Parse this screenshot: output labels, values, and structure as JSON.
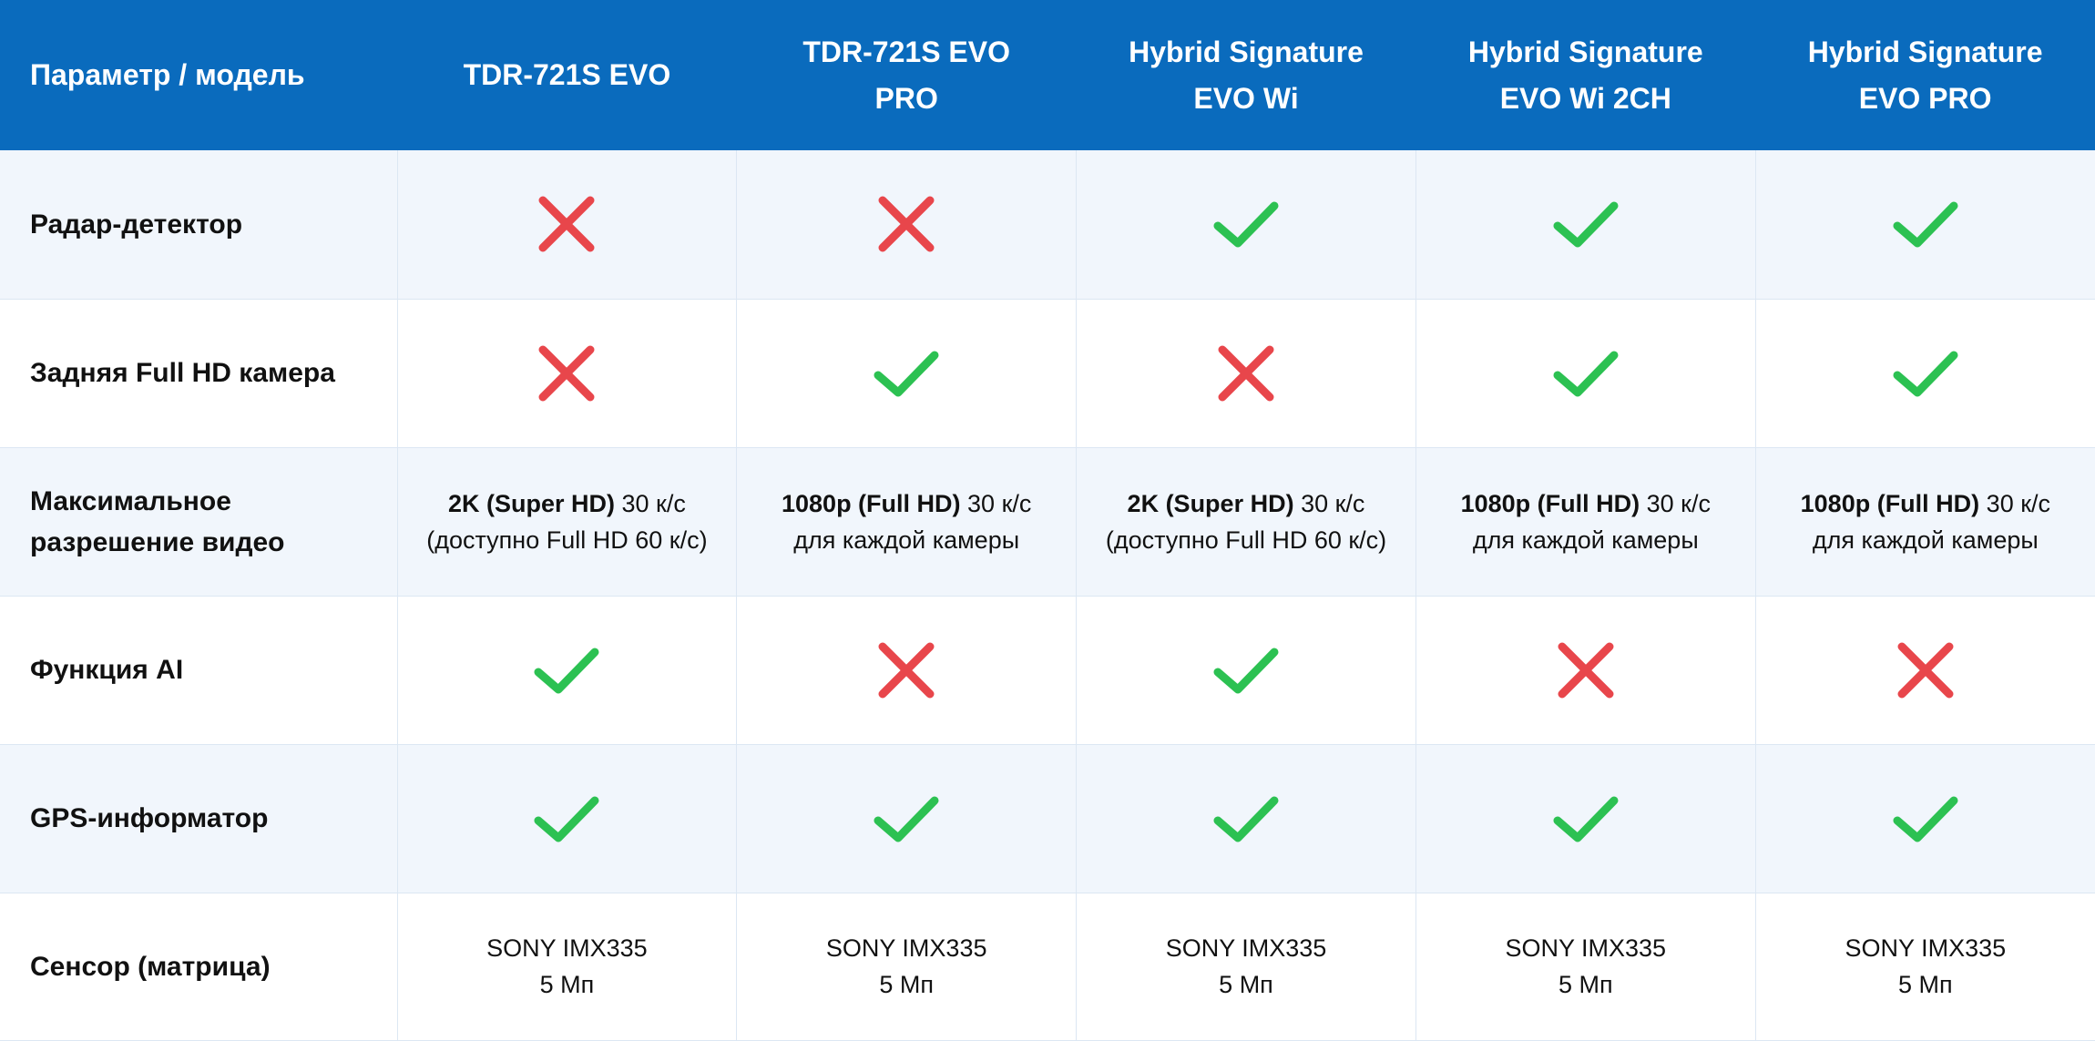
{
  "header": {
    "param_label": "Параметр / модель",
    "models": [
      {
        "line1": "TDR-721S EVO",
        "line2": ""
      },
      {
        "line1": "TDR-721S EVO",
        "line2": "PRO"
      },
      {
        "line1": "Hybrid Signature",
        "line2": "EVO Wi"
      },
      {
        "line1": "Hybrid Signature",
        "line2": "EVO Wi 2CH"
      },
      {
        "line1": "Hybrid Signature",
        "line2": "EVO PRO"
      }
    ]
  },
  "rows": {
    "radar": {
      "label": "Радар-детектор",
      "values": [
        false,
        false,
        true,
        true,
        true
      ]
    },
    "rear_camera": {
      "label": "Задняя Full HD камера",
      "values": [
        false,
        true,
        false,
        true,
        true
      ]
    },
    "resolution": {
      "label_line1": "Максимальное",
      "label_line2": "разрешение видео",
      "cells": [
        {
          "bold": "2K (Super HD)",
          "rest": " 30 к/с",
          "line2": "(доступно Full HD 60 к/с)"
        },
        {
          "bold": "1080p (Full HD)",
          "rest": " 30 к/с",
          "line2": "для каждой камеры"
        },
        {
          "bold": "2K (Super HD)",
          "rest": " 30 к/с",
          "line2": "(доступно Full HD 60 к/с)"
        },
        {
          "bold": "1080p (Full HD)",
          "rest": " 30 к/с",
          "line2": "для каждой камеры"
        },
        {
          "bold": "1080p (Full HD)",
          "rest": " 30 к/с",
          "line2": "для каждой камеры"
        }
      ]
    },
    "ai": {
      "label": "Функция AI",
      "values": [
        true,
        false,
        true,
        false,
        false
      ]
    },
    "gps": {
      "label": "GPS-информатор",
      "values": [
        true,
        true,
        true,
        true,
        true
      ]
    },
    "sensor": {
      "label": "Сенсор (матрица)",
      "cells": [
        {
          "line1": "SONY IMX335",
          "line2": "5 Мп"
        },
        {
          "line1": "SONY IMX335",
          "line2": "5 Мп"
        },
        {
          "line1": "SONY IMX335",
          "line2": "5 Мп"
        },
        {
          "line1": "SONY IMX335",
          "line2": "5 Мп"
        },
        {
          "line1": "SONY IMX335",
          "line2": "5 Мп"
        }
      ]
    }
  },
  "icons": {
    "yes": "check-icon",
    "no": "cross-icon"
  },
  "colors": {
    "header_bg": "#0a6bbd",
    "check": "#2cc152",
    "cross": "#e8464b",
    "stripe": "#f1f6fc"
  }
}
